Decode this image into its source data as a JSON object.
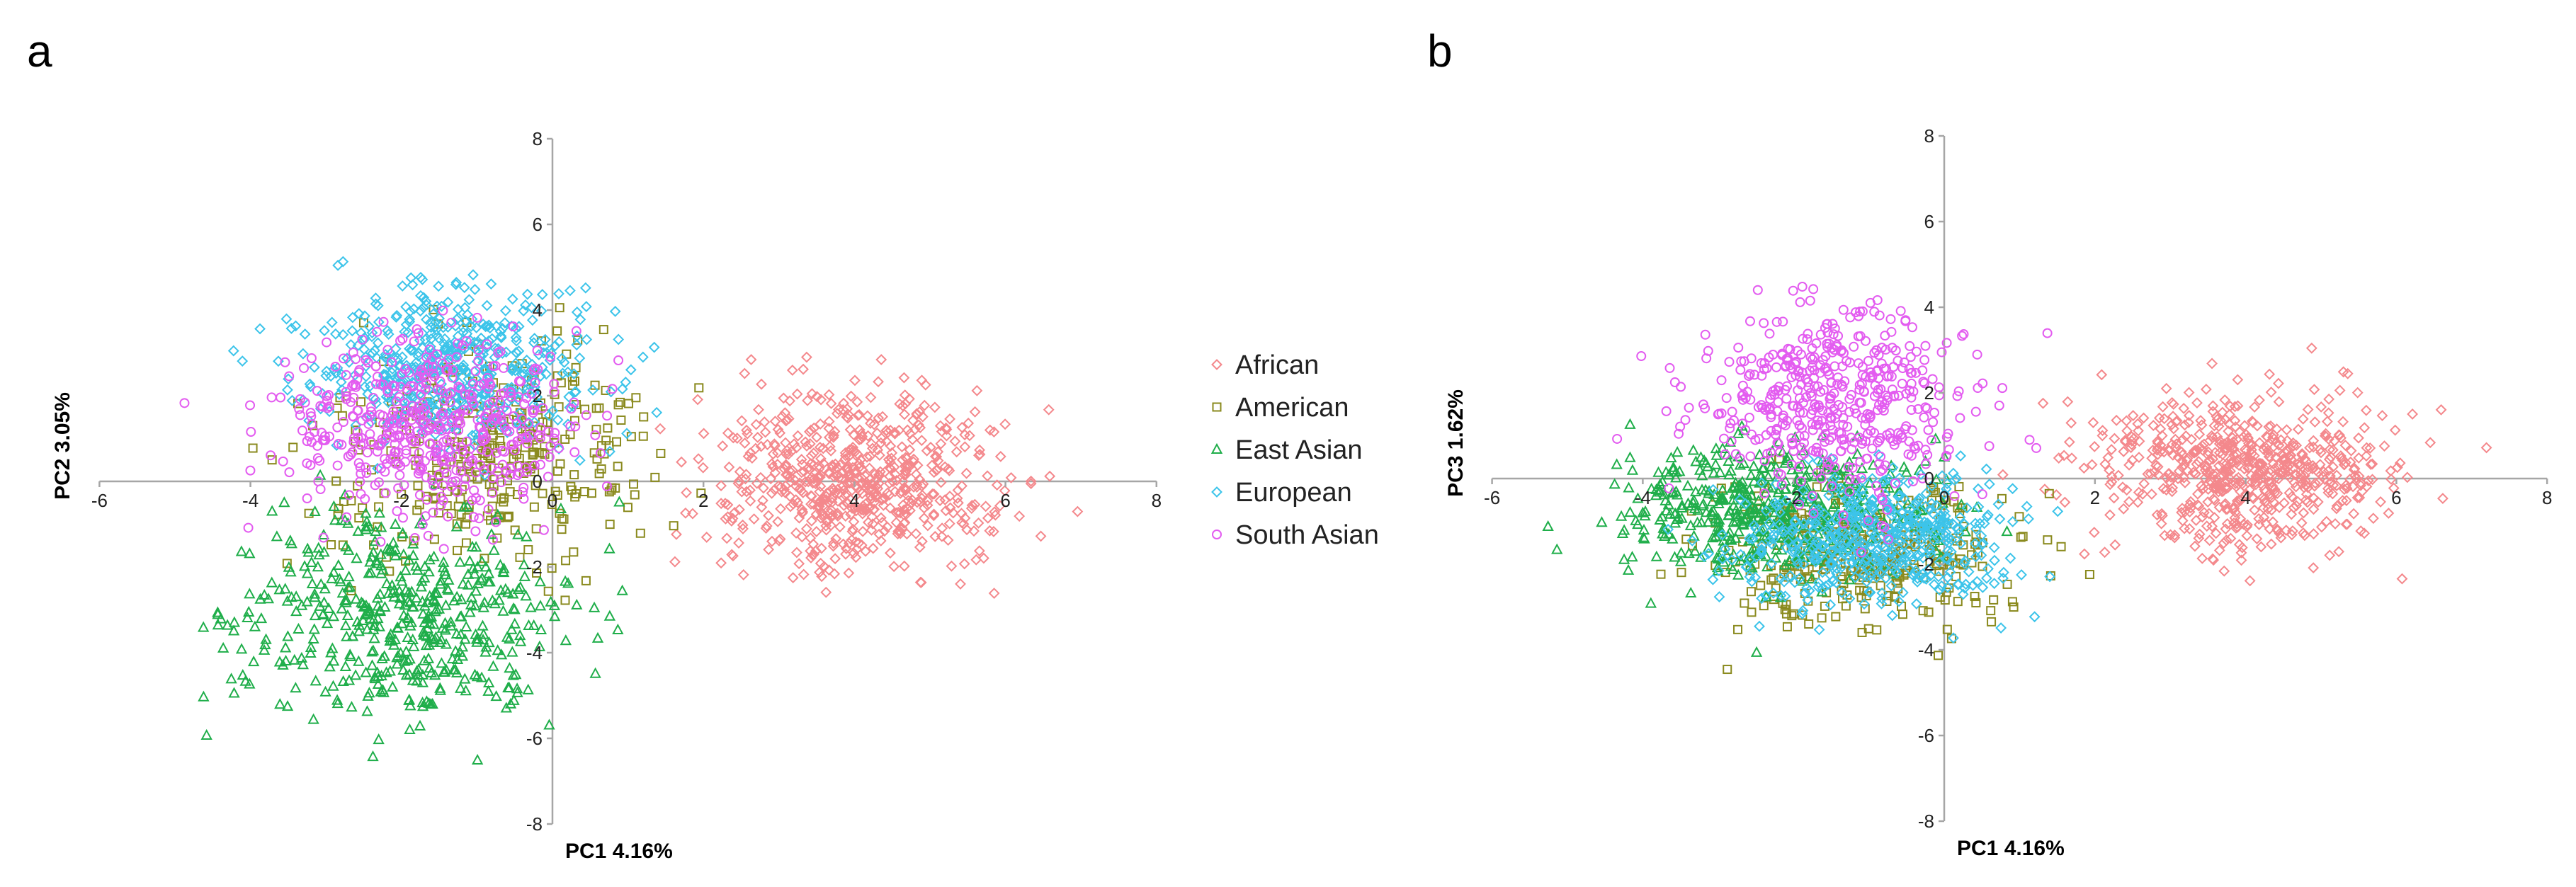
{
  "colors": {
    "African": "#f4888c",
    "American": "#8a8a1e",
    "East Asian": "#1fae4a",
    "European": "#3cc4ea",
    "South Asian": "#e35cf0"
  },
  "legend": {
    "position": "between panels",
    "entries": [
      {
        "name": "African",
        "marker": "diamond"
      },
      {
        "name": "American",
        "marker": "square"
      },
      {
        "name": "East Asian",
        "marker": "triangle"
      },
      {
        "name": "European",
        "marker": "diamond"
      },
      {
        "name": "South Asian",
        "marker": "circle"
      }
    ]
  },
  "chart_data": [
    {
      "panel": "a",
      "type": "scatter",
      "xlabel": "PC1 4.16%",
      "ylabel": "PC2 3.05%",
      "xlim": [
        -6,
        8
      ],
      "ylim": [
        -8,
        8
      ],
      "xticks": [
        -6,
        -4,
        -2,
        0,
        2,
        4,
        6,
        8
      ],
      "yticks": [
        -8,
        -6,
        -4,
        -2,
        0,
        2,
        4,
        6,
        8
      ],
      "grid": false,
      "series": [
        {
          "name": "African",
          "marker": "diamond",
          "center": [
            4.0,
            0.0
          ],
          "spread": [
            0.9,
            1.0
          ],
          "n": 650
        },
        {
          "name": "American",
          "marker": "square",
          "center": [
            -0.8,
            0.8
          ],
          "spread": [
            1.1,
            1.3
          ],
          "n": 330
        },
        {
          "name": "East Asian",
          "marker": "triangle",
          "center": [
            -2.0,
            -3.2
          ],
          "spread": [
            1.1,
            1.2
          ],
          "n": 500
        },
        {
          "name": "European",
          "marker": "diamond",
          "center": [
            -1.3,
            2.6
          ],
          "spread": [
            1.0,
            0.9
          ],
          "n": 500
        },
        {
          "name": "South Asian",
          "marker": "circle",
          "center": [
            -1.6,
            1.3
          ],
          "spread": [
            1.0,
            1.0
          ],
          "n": 490
        }
      ]
    },
    {
      "panel": "b",
      "type": "scatter",
      "xlabel": "PC1 4.16%",
      "ylabel": "PC3 1.62%",
      "xlim": [
        -6,
        8
      ],
      "ylim": [
        -8,
        8
      ],
      "xticks": [
        -6,
        -4,
        -2,
        0,
        2,
        4,
        6,
        8
      ],
      "yticks": [
        -8,
        -6,
        -4,
        -2,
        0,
        2,
        4,
        6,
        8
      ],
      "grid": false,
      "series": [
        {
          "name": "African",
          "marker": "diamond",
          "center": [
            4.0,
            0.2
          ],
          "spread": [
            0.95,
            0.9
          ],
          "n": 650
        },
        {
          "name": "American",
          "marker": "square",
          "center": [
            -1.0,
            -1.8
          ],
          "spread": [
            1.0,
            0.9
          ],
          "n": 330
        },
        {
          "name": "East Asian",
          "marker": "triangle",
          "center": [
            -2.3,
            -0.7
          ],
          "spread": [
            1.0,
            0.8
          ],
          "n": 500
        },
        {
          "name": "European",
          "marker": "diamond",
          "center": [
            -0.9,
            -1.4
          ],
          "spread": [
            0.9,
            0.8
          ],
          "n": 500
        },
        {
          "name": "South Asian",
          "marker": "circle",
          "center": [
            -1.5,
            1.7
          ],
          "spread": [
            0.9,
            1.1
          ],
          "n": 490
        }
      ]
    }
  ]
}
